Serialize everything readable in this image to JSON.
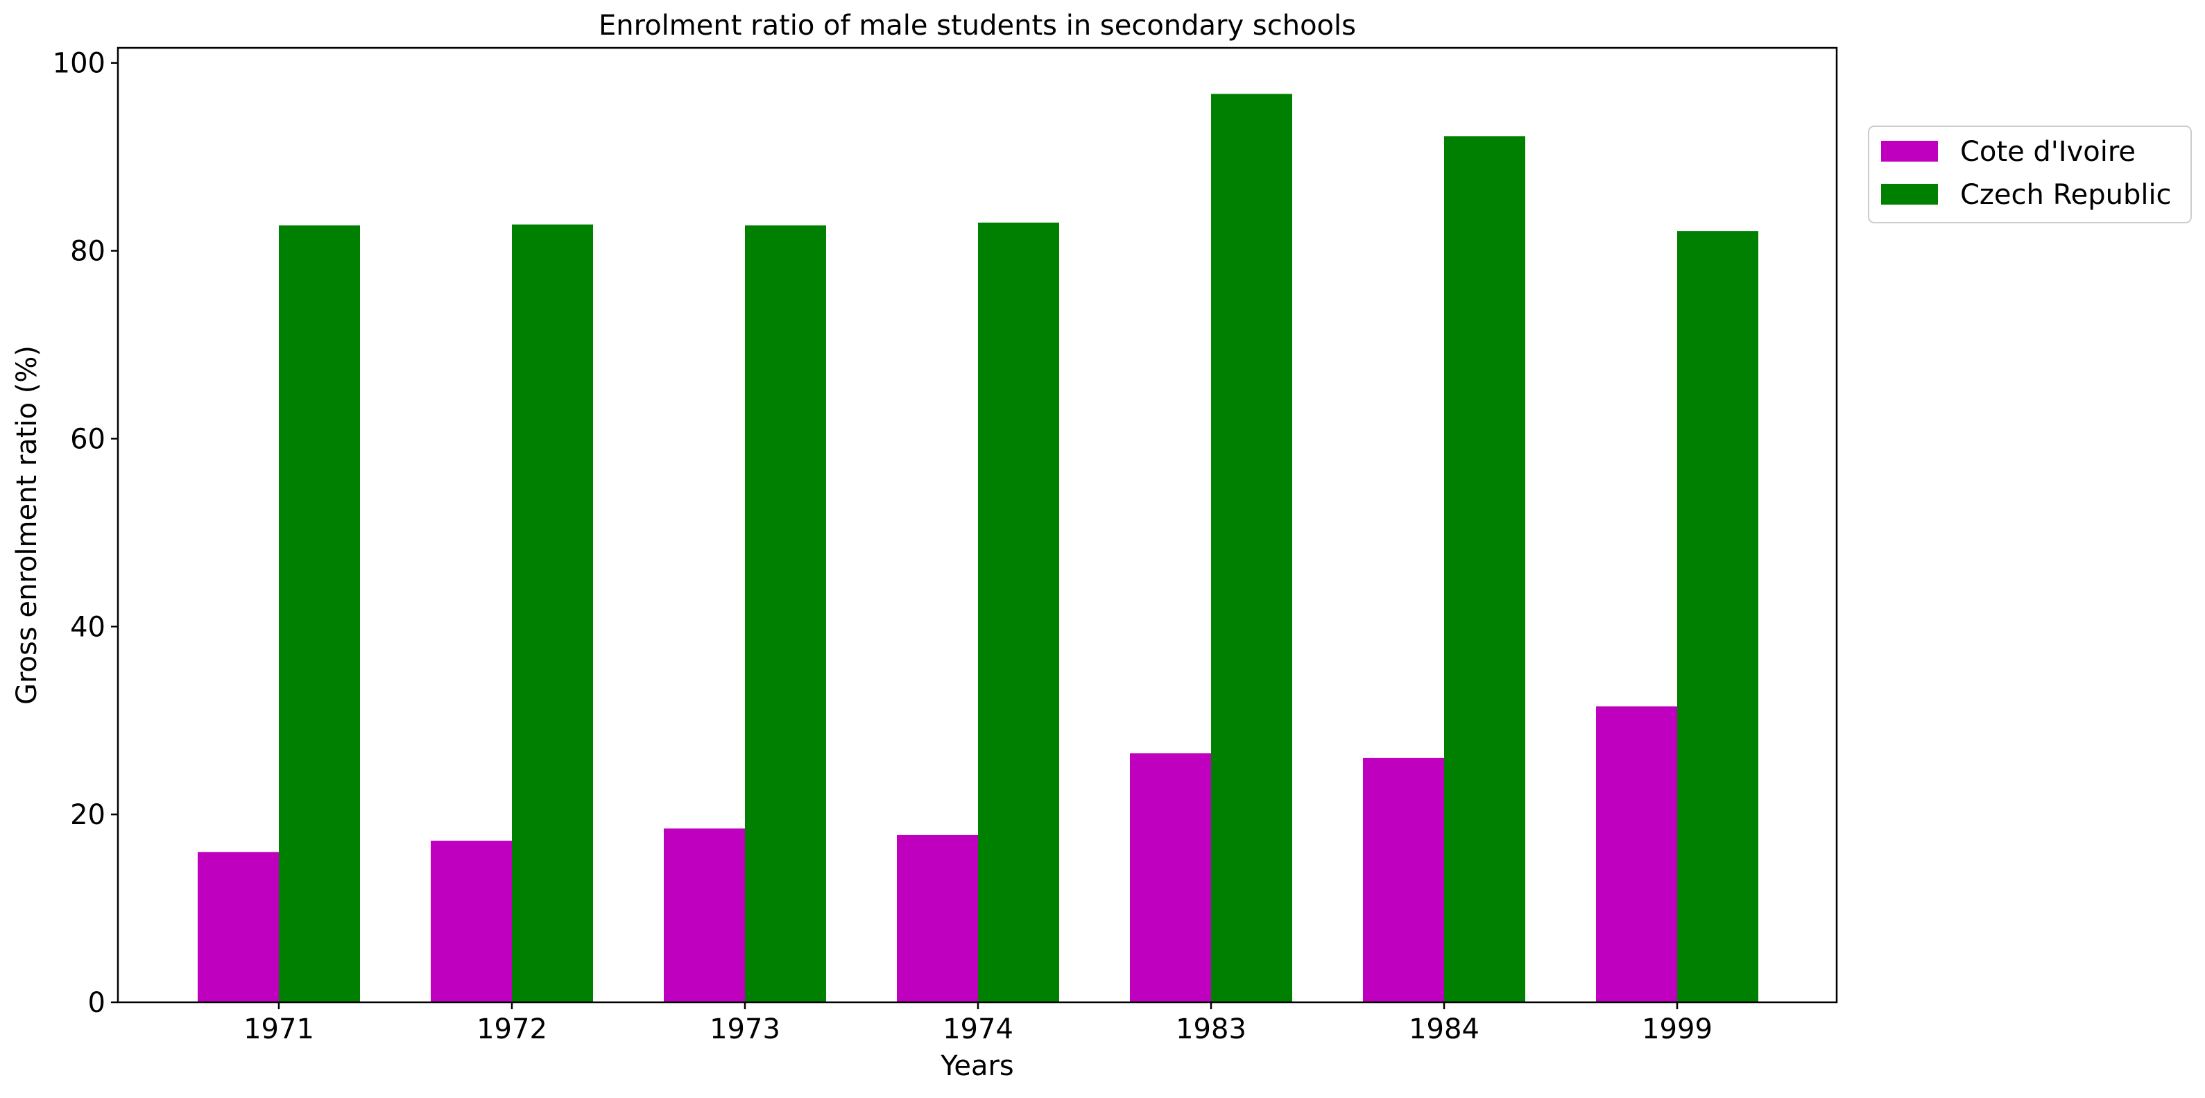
{
  "chart_data": {
    "type": "bar",
    "title": "Enrolment ratio of male students in secondary schools",
    "xlabel": "Years",
    "ylabel": "Gross enrolment ratio (%)",
    "categories": [
      "1971",
      "1972",
      "1973",
      "1974",
      "1983",
      "1984",
      "1999"
    ],
    "series": [
      {
        "name": "Cote d'Ivoire",
        "color": "#bf00bf",
        "values": [
          16.0,
          17.2,
          18.5,
          17.8,
          26.5,
          26.0,
          31.5
        ]
      },
      {
        "name": "Czech Republic",
        "color": "#008000",
        "values": [
          82.7,
          82.8,
          82.7,
          83.0,
          96.7,
          92.2,
          82.1
        ]
      }
    ],
    "ylim": [
      0,
      101.6
    ],
    "yticks": [
      0,
      20,
      40,
      60,
      80,
      100
    ],
    "grid": false,
    "legend_position": "outside-top-right"
  }
}
